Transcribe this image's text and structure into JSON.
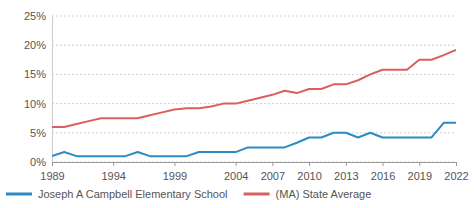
{
  "chart_data": {
    "type": "line",
    "x": [
      1989,
      1990,
      1991,
      1992,
      1993,
      1994,
      1995,
      1996,
      1997,
      1998,
      1999,
      2000,
      2001,
      2002,
      2003,
      2004,
      2005,
      2006,
      2007,
      2008,
      2009,
      2010,
      2011,
      2012,
      2013,
      2014,
      2015,
      2016,
      2017,
      2018,
      2019,
      2020,
      2021,
      2022
    ],
    "series": [
      {
        "name": "Joseph A Campbell Elementary School",
        "color": "#2b8cc4",
        "values": [
          1,
          1.7,
          1,
          1,
          1,
          1,
          1,
          1.7,
          1,
          1,
          1,
          1,
          1.7,
          1.7,
          1.7,
          1.7,
          2.5,
          2.5,
          2.5,
          2.5,
          3.3,
          4.2,
          4.2,
          5,
          5,
          4.2,
          5,
          4.2,
          4.2,
          4.2,
          4.2,
          4.2,
          6.7,
          6.7
        ]
      },
      {
        "name": "(MA) State Average",
        "color": "#d95f61",
        "values": [
          6,
          6,
          6.5,
          7,
          7.5,
          7.5,
          7.5,
          7.5,
          8,
          8.5,
          9,
          9.2,
          9.2,
          9.5,
          10,
          10,
          10.5,
          11,
          11.5,
          12.2,
          11.8,
          12.5,
          12.5,
          13.3,
          13.3,
          14,
          15,
          15.8,
          15.8,
          15.8,
          17.5,
          17.5,
          18.3,
          19.2
        ]
      }
    ],
    "xlim": [
      1989,
      2022
    ],
    "xticks": [
      1989,
      1994,
      1999,
      2004,
      2007,
      2010,
      2013,
      2016,
      2019,
      2022
    ],
    "ylim": [
      0,
      25
    ],
    "yticks": [
      {
        "value": 0,
        "label": "0%"
      },
      {
        "value": 5,
        "label": "5%"
      },
      {
        "value": 10,
        "label": "10%"
      },
      {
        "value": 15,
        "label": "15%"
      },
      {
        "value": 20,
        "label": "20%"
      },
      {
        "value": 25,
        "label": "25%"
      }
    ],
    "grid": true,
    "legend": "bottom"
  }
}
